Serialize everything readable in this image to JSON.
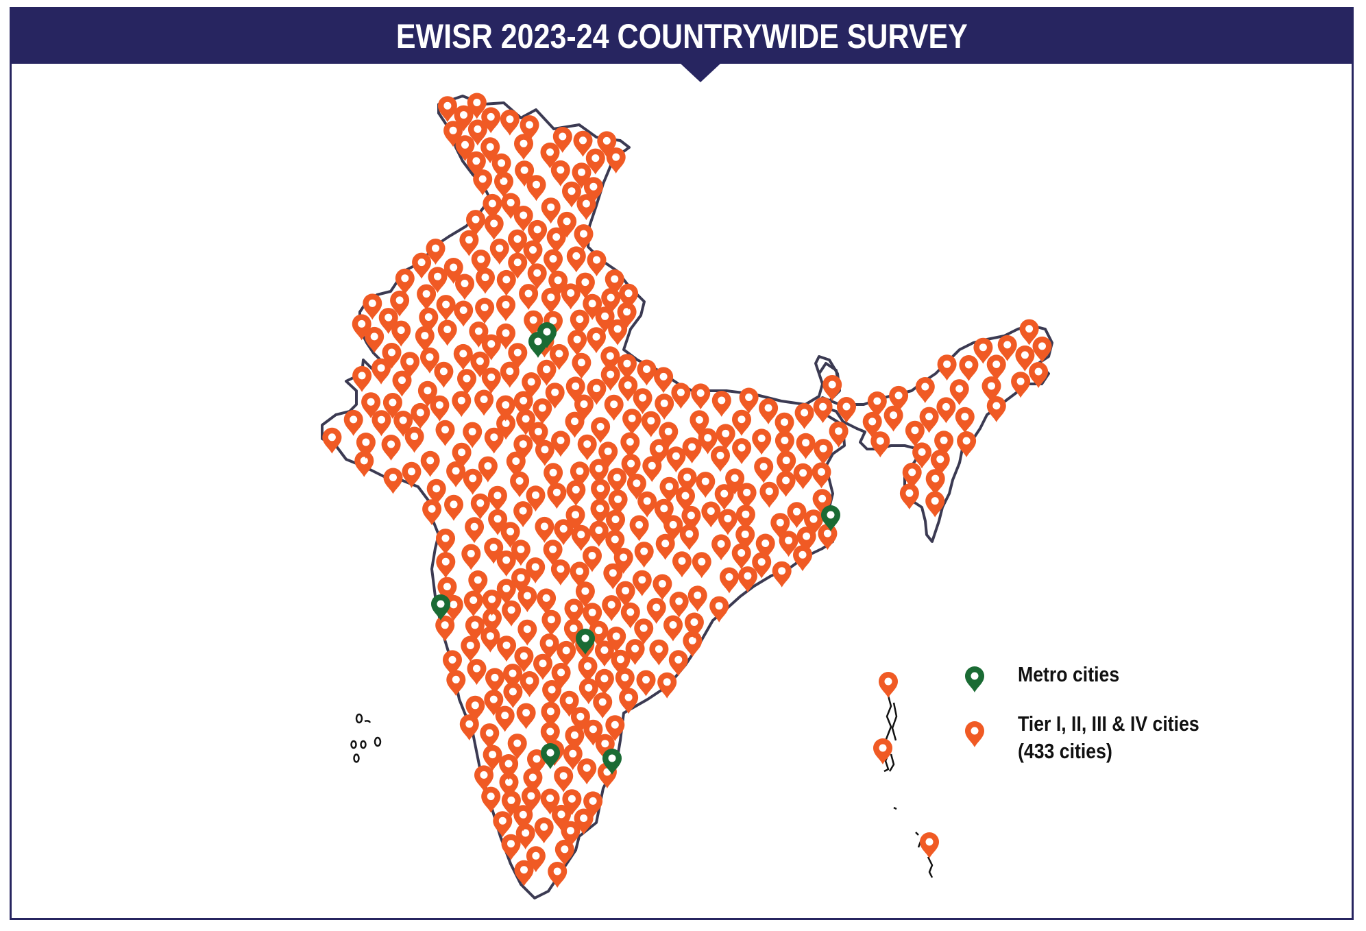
{
  "header": {
    "title": "EWISR 2023-24 COUNTRYWIDE SURVEY"
  },
  "legend": {
    "metro_label": "Metro cities",
    "tier_label": "Tier I, II, III & IV cities",
    "tier_count": "(433 cities)"
  },
  "colors": {
    "header_bg": "#272560",
    "outline": "#3b3a52",
    "tier_marker": "#f05a24",
    "metro_marker": "#1a6b34"
  },
  "icons": {
    "metro": "map-pin-icon",
    "tier": "map-pin-icon"
  }
}
